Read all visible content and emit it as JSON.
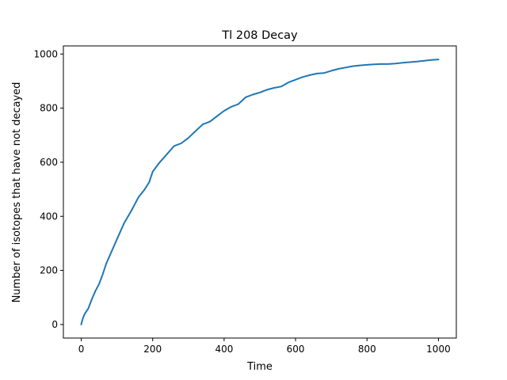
{
  "chart_data": {
    "type": "line",
    "title": "Tl 208 Decay",
    "xlabel": "Time",
    "ylabel": "Number of isotopes that have not decayed",
    "xlim": [
      -50,
      1050
    ],
    "ylim": [
      -50,
      1030
    ],
    "x_ticks": [
      0,
      200,
      400,
      600,
      800,
      1000
    ],
    "y_ticks": [
      0,
      200,
      400,
      600,
      800,
      1000
    ],
    "grid": false,
    "series_color": "#1f77b4",
    "series": [
      {
        "x": [
          0,
          5,
          10,
          20,
          30,
          40,
          50,
          60,
          70,
          80,
          90,
          100,
          120,
          140,
          160,
          175,
          190,
          200,
          220,
          240,
          260,
          280,
          300,
          320,
          340,
          360,
          380,
          400,
          420,
          440,
          460,
          480,
          500,
          520,
          540,
          560,
          580,
          600,
          620,
          640,
          660,
          680,
          700,
          720,
          740,
          760,
          780,
          800,
          820,
          840,
          860,
          880,
          900,
          920,
          940,
          960,
          980,
          1000
        ],
        "y": [
          0,
          25,
          40,
          60,
          95,
          125,
          150,
          185,
          225,
          255,
          285,
          315,
          375,
          420,
          470,
          495,
          525,
          565,
          600,
          630,
          660,
          670,
          690,
          715,
          740,
          750,
          770,
          790,
          805,
          815,
          840,
          850,
          858,
          868,
          875,
          880,
          895,
          905,
          915,
          922,
          928,
          930,
          938,
          945,
          950,
          955,
          958,
          960,
          962,
          963,
          963,
          965,
          968,
          970,
          972,
          975,
          978,
          980
        ]
      }
    ]
  }
}
